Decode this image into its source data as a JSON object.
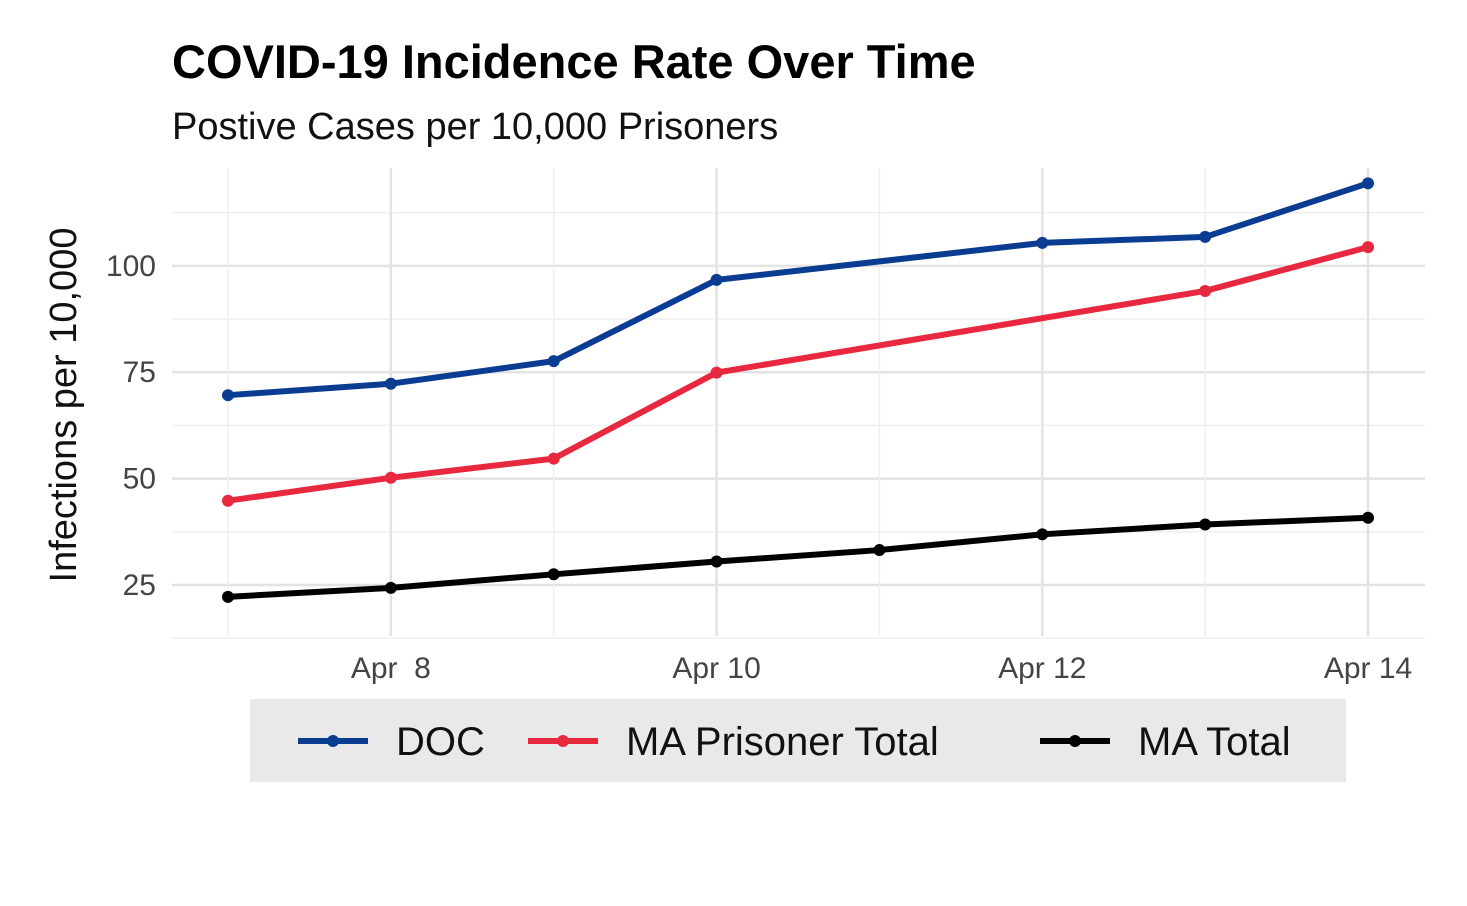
{
  "chart_data": {
    "type": "line",
    "title": "COVID-19 Incidence Rate Over Time",
    "subtitle": "Postive Cases per 10,000 Prisoners",
    "xlabel": "",
    "ylabel": "Infections per 10,000",
    "x": [
      "Apr 7",
      "Apr 8",
      "Apr 9",
      "Apr 10",
      "Apr 11",
      "Apr 12",
      "Apr 13",
      "Apr 14"
    ],
    "x_ticks": [
      "Apr  8",
      "Apr 10",
      "Apr 12",
      "Apr 14"
    ],
    "y_ticks": [
      "25",
      "50",
      "75",
      "100"
    ],
    "ylim": [
      13,
      123
    ],
    "grid": true,
    "legend_position": "bottom",
    "series": [
      {
        "name": "DOC",
        "color": "#0a3d91",
        "values": [
          69.6,
          72.3,
          77.6,
          96.7,
          null,
          105.4,
          106.8,
          119.4
        ]
      },
      {
        "name": "MA Prisoner Total",
        "color": "#e8283f",
        "values": [
          44.8,
          50.2,
          54.7,
          74.9,
          null,
          null,
          94.1,
          104.4
        ]
      },
      {
        "name": "MA Total",
        "color": "#000000",
        "values": [
          22.2,
          24.3,
          27.5,
          30.5,
          33.2,
          36.9,
          39.2,
          40.8
        ]
      }
    ]
  }
}
